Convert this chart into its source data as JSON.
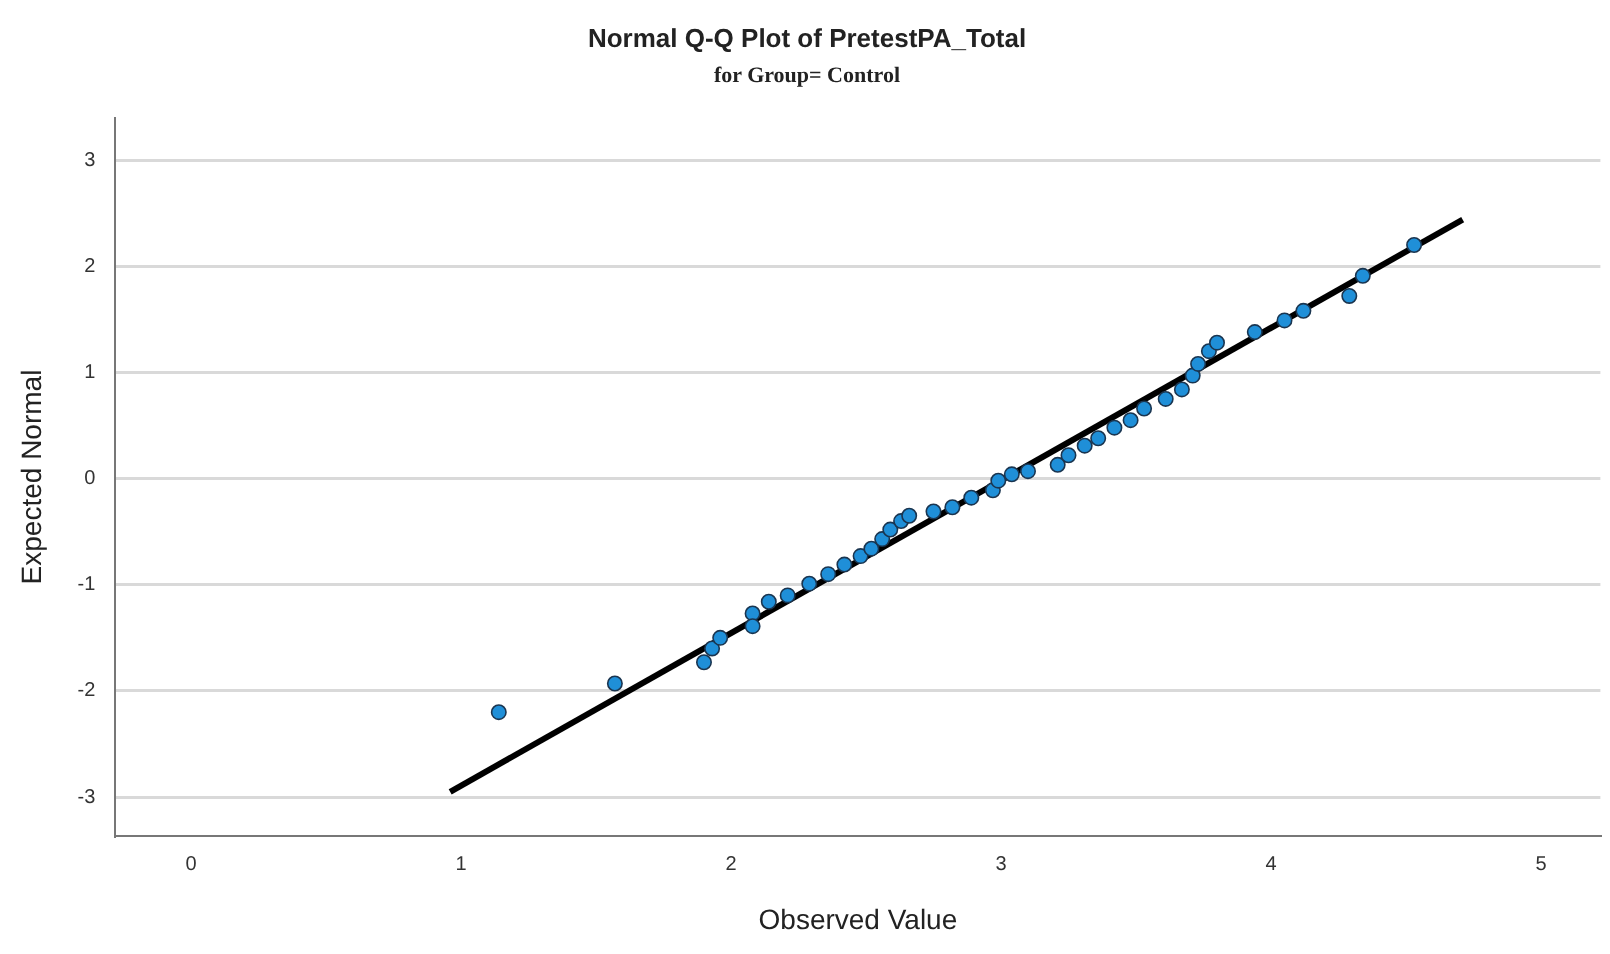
{
  "chart_data": {
    "type": "scatter",
    "title": "Normal Q-Q Plot of PretestPA_Total",
    "subtitle": "for Group= Control",
    "xlabel": "Observed Value",
    "ylabel": "Expected Normal",
    "xlim": [
      -0.28,
      5.22
    ],
    "ylim": [
      -3.37,
      3.4
    ],
    "xticks": [
      0,
      1,
      2,
      3,
      4,
      5
    ],
    "yticks": [
      -3,
      -2,
      -1,
      0,
      1,
      2,
      3
    ],
    "grid": "y",
    "legend": false,
    "series": [
      {
        "color": "#1f8fd8",
        "marker": "circle",
        "x": [
          1.14,
          1.57,
          1.9,
          1.93,
          1.96,
          2.08,
          2.08,
          2.14,
          2.21,
          2.29,
          2.36,
          2.42,
          2.48,
          2.52,
          2.56,
          2.59,
          2.63,
          2.66,
          2.75,
          2.82,
          2.89,
          2.97,
          2.99,
          3.04,
          3.1,
          3.21,
          3.25,
          3.31,
          3.36,
          3.42,
          3.48,
          3.53,
          3.61,
          3.67,
          3.71,
          3.73,
          3.77,
          3.8,
          3.94,
          4.05,
          4.12,
          4.29,
          4.34,
          4.53
        ],
        "values": [
          -2.2,
          -1.93,
          -1.73,
          -1.6,
          -1.5,
          -1.27,
          -1.39,
          -1.16,
          -1.1,
          -0.99,
          -0.9,
          -0.81,
          -0.73,
          -0.66,
          -0.57,
          -0.48,
          -0.4,
          -0.35,
          -0.31,
          -0.27,
          -0.18,
          -0.11,
          -0.02,
          0.04,
          0.07,
          0.13,
          0.22,
          0.31,
          0.38,
          0.48,
          0.55,
          0.66,
          0.75,
          0.84,
          0.97,
          1.08,
          1.2,
          1.28,
          1.38,
          1.49,
          1.58,
          1.72,
          1.91,
          2.2
        ]
      },
      {
        "type": "line",
        "color": "#000000",
        "marker": "none",
        "line_style": "solid",
        "x": [
          0.96,
          4.71
        ],
        "values": [
          -2.95,
          2.44
        ]
      }
    ]
  }
}
